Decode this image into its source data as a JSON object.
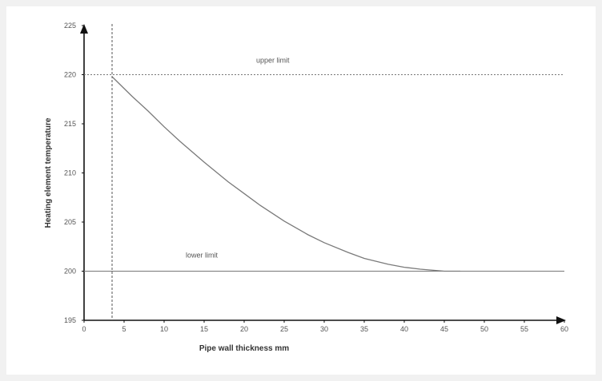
{
  "chart_data": {
    "type": "line",
    "xlabel": "Pipe wall thickness mm",
    "ylabel": "Heating element temperature",
    "xlim": [
      0,
      60
    ],
    "ylim": [
      195,
      225
    ],
    "x_ticks": [
      "0",
      "5",
      "10",
      "15",
      "20",
      "25",
      "30",
      "35",
      "40",
      "45",
      "50",
      "55",
      "60"
    ],
    "y_ticks": [
      "195",
      "200",
      "205",
      "210",
      "215",
      "220",
      "225"
    ],
    "series": [
      {
        "x": [
          3.5,
          6,
          8,
          10,
          12,
          15,
          18,
          20,
          22,
          25,
          28,
          30,
          33,
          35,
          38,
          40,
          42,
          45,
          47
        ],
        "y": [
          219.8,
          217.8,
          216.3,
          214.7,
          213.2,
          211.1,
          209.1,
          207.9,
          206.7,
          205.1,
          203.7,
          202.9,
          201.9,
          201.3,
          200.7,
          200.4,
          200.2,
          200.0,
          200.0
        ]
      }
    ],
    "annotations": {
      "upper_limit": {
        "label": "upper limit",
        "y": 220
      },
      "lower_limit": {
        "label": "lower limit",
        "y": 200
      },
      "min_thickness_x": 3.5
    },
    "grid": false,
    "colors": {
      "curve": "#7a7a7a",
      "axis": "#111111",
      "limit": "#777777"
    }
  }
}
